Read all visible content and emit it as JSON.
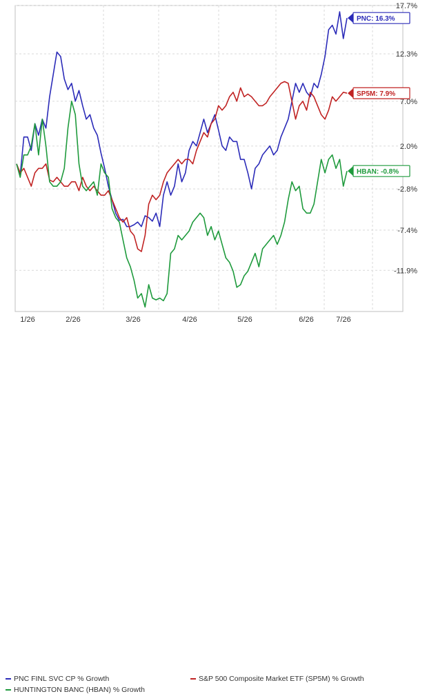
{
  "chart_data": {
    "type": "line",
    "x_ticks": [
      "1/26",
      "2/26",
      "3/26",
      "4/26",
      "5/26",
      "6/26",
      "7/26"
    ],
    "y_ticks": [
      "17.7%",
      "12.3%",
      "7.0%",
      "2.0%",
      "-2.8%",
      "-7.4%",
      "-11.9%"
    ],
    "y_tick_values": [
      17.7,
      12.3,
      7.0,
      2.0,
      -2.8,
      -7.4,
      -11.9
    ],
    "ylim": [
      -16.5,
      17.7
    ],
    "grid": true,
    "series": [
      {
        "name": "PNC FINL SVC CP % Growth",
        "end_label": "PNC: 16.3%",
        "color": "#2b2bb8",
        "values": [
          0.0,
          -1.2,
          3.0,
          3.0,
          1.5,
          4.5,
          3.2,
          5.0,
          4.0,
          7.5,
          10.0,
          12.5,
          12.0,
          9.5,
          8.3,
          9.0,
          7.0,
          8.2,
          6.5,
          5.0,
          5.5,
          4.0,
          3.2,
          1.2,
          -0.5,
          -2.5,
          -4.0,
          -5.5,
          -6.3,
          -6.2,
          -7.0,
          -7.0,
          -6.8,
          -6.5,
          -7.0,
          -5.8,
          -6.0,
          -6.4,
          -5.5,
          -7.0,
          -3.5,
          -2.0,
          -3.5,
          -2.5,
          0.0,
          -2.0,
          -1.0,
          1.5,
          2.5,
          2.0,
          3.5,
          5.0,
          3.5,
          4.5,
          5.5,
          3.8,
          2.0,
          1.5,
          3.0,
          2.5,
          2.5,
          0.5,
          0.5,
          -1.0,
          -2.8,
          -0.5,
          0.0,
          1.0,
          1.5,
          2.0,
          1.0,
          1.5,
          3.0,
          4.0,
          5.0,
          7.0,
          9.0,
          8.0,
          9.0,
          8.0,
          7.5,
          9.0,
          8.5,
          10.0,
          12.0,
          15.0,
          15.5,
          14.5,
          17.0,
          14.0,
          16.3
        ]
      },
      {
        "name": "S&P 500 Composite Market ETF (SP5M) % Growth",
        "end_label": "SP5M: 7.9%",
        "color": "#c02222",
        "values": [
          0.0,
          -1.0,
          -0.5,
          -1.5,
          -2.5,
          -1.0,
          -0.5,
          -0.5,
          0.0,
          -1.8,
          -2.0,
          -1.5,
          -2.0,
          -2.5,
          -2.5,
          -2.0,
          -2.0,
          -3.0,
          -1.5,
          -2.5,
          -3.0,
          -2.5,
          -3.0,
          -3.5,
          -3.5,
          -3.0,
          -4.0,
          -5.0,
          -6.0,
          -6.5,
          -6.0,
          -7.5,
          -8.0,
          -9.5,
          -9.8,
          -8.0,
          -4.5,
          -3.5,
          -4.0,
          -3.5,
          -2.0,
          -1.0,
          -0.5,
          0.0,
          0.5,
          0.0,
          0.5,
          0.5,
          0.0,
          1.5,
          2.5,
          3.5,
          3.0,
          4.5,
          5.0,
          6.5,
          6.0,
          6.5,
          7.5,
          8.0,
          7.0,
          8.5,
          7.5,
          7.8,
          7.5,
          7.0,
          6.5,
          6.5,
          6.8,
          7.5,
          8.0,
          8.5,
          9.0,
          9.2,
          9.0,
          7.0,
          5.0,
          6.5,
          7.0,
          6.0,
          8.0,
          7.5,
          6.5,
          5.5,
          5.0,
          6.0,
          7.5,
          7.0,
          7.5,
          8.0,
          7.9
        ]
      },
      {
        "name": "HUNTINGTON BANC (HBAN) % Growth",
        "end_label": "HBAN: -0.8%",
        "color": "#1e9a3c",
        "values": [
          0.0,
          -1.5,
          1.0,
          1.0,
          2.0,
          4.5,
          1.0,
          5.0,
          2.0,
          -2.0,
          -2.5,
          -2.5,
          -2.0,
          -0.5,
          4.0,
          7.0,
          5.5,
          0.0,
          -2.5,
          -3.0,
          -2.5,
          -2.0,
          -3.5,
          0.0,
          -1.0,
          -1.5,
          -5.0,
          -6.0,
          -6.5,
          -8.5,
          -10.5,
          -11.5,
          -13.0,
          -15.0,
          -14.5,
          -16.0,
          -13.5,
          -15.0,
          -15.2,
          -15.0,
          -15.3,
          -14.5,
          -10.0,
          -9.5,
          -8.0,
          -8.5,
          -8.0,
          -7.5,
          -6.5,
          -6.0,
          -5.5,
          -6.0,
          -8.0,
          -7.0,
          -8.5,
          -7.5,
          -9.0,
          -10.5,
          -11.0,
          -12.0,
          -13.8,
          -13.5,
          -12.5,
          -12.0,
          -11.0,
          -10.0,
          -11.5,
          -9.5,
          -9.0,
          -8.5,
          -8.0,
          -9.0,
          -8.0,
          -6.5,
          -4.0,
          -2.0,
          -3.0,
          -2.5,
          -5.0,
          -5.5,
          -5.5,
          -4.5,
          -2.0,
          0.5,
          -1.0,
          0.5,
          1.0,
          -0.5,
          0.5,
          -2.5,
          -0.8
        ]
      }
    ]
  }
}
